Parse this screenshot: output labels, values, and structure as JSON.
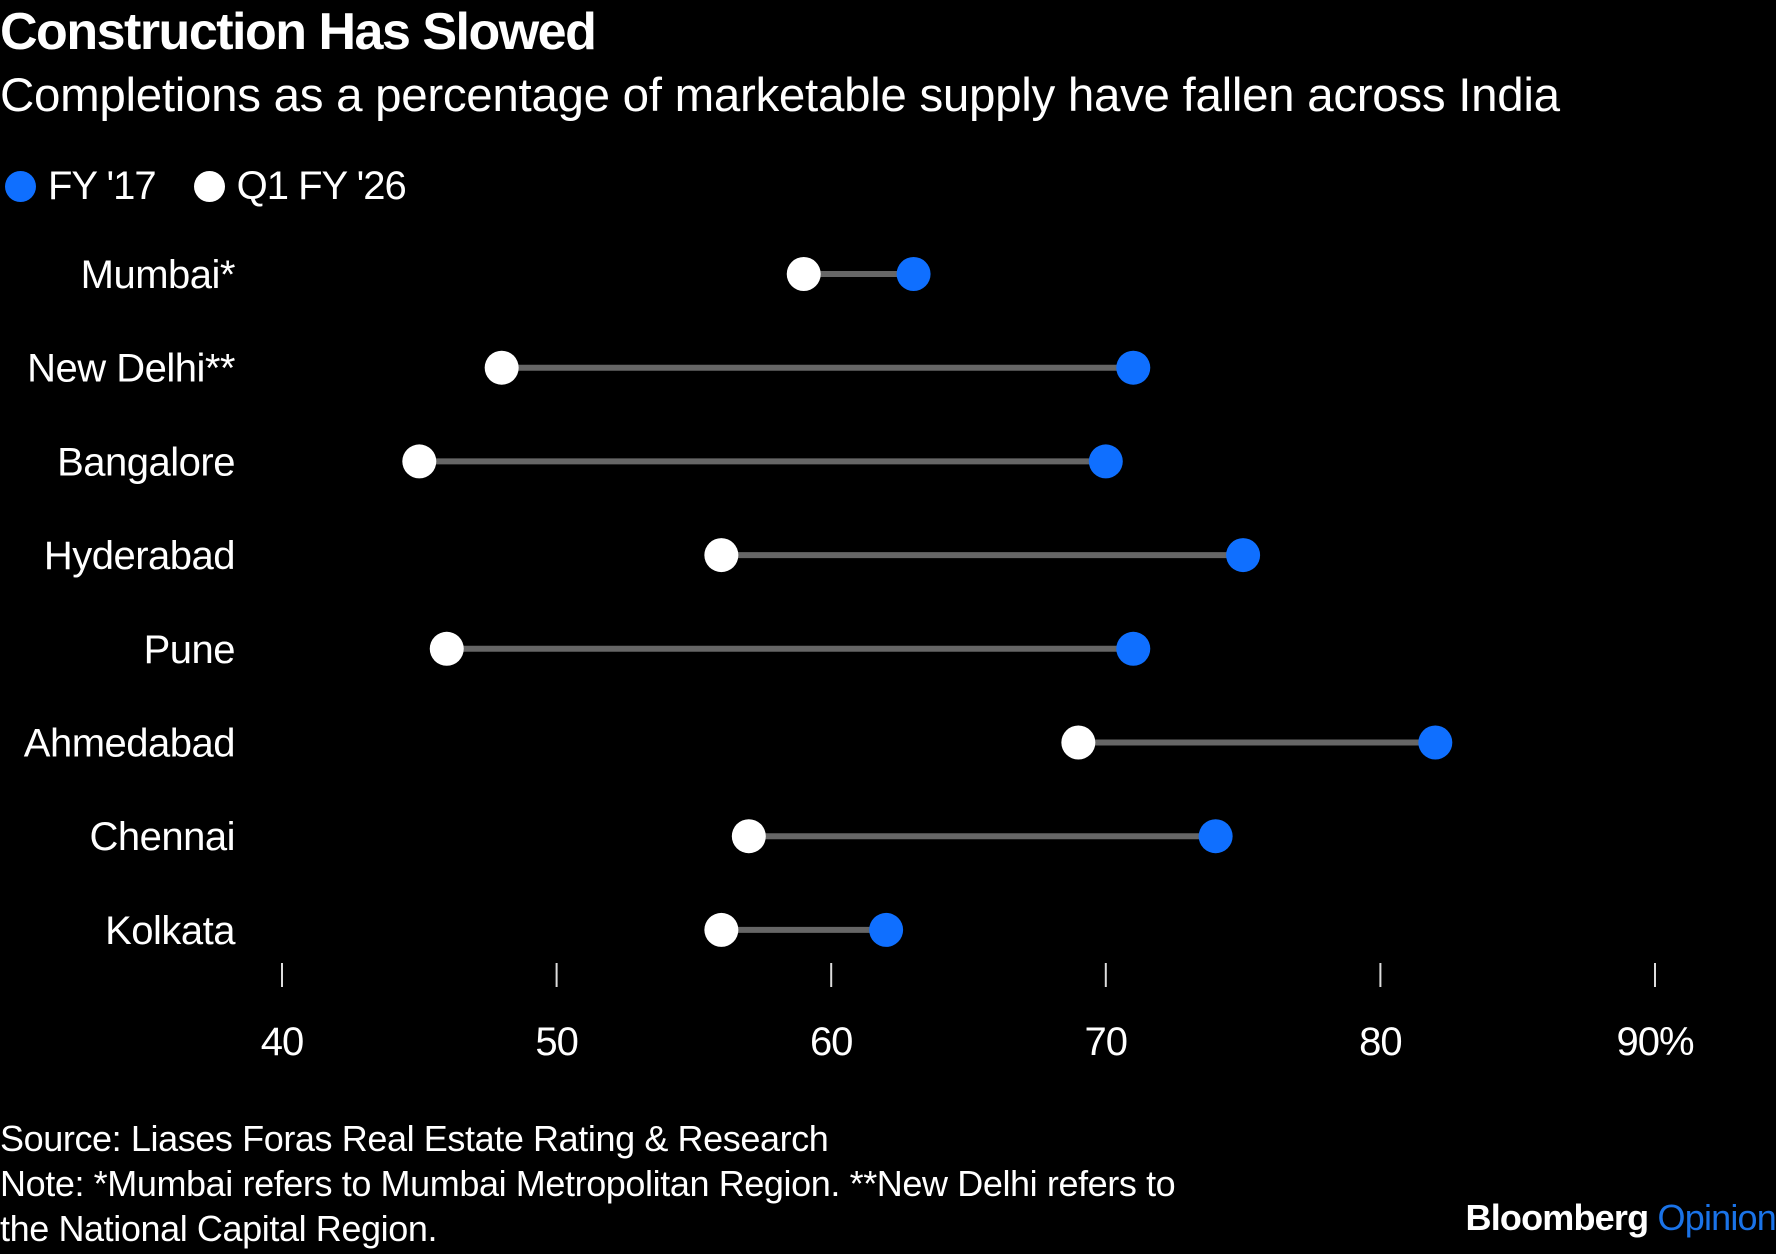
{
  "header": {
    "title": "Construction Has Slowed",
    "subtitle": "Completions as a percentage of marketable supply have fallen across India"
  },
  "legend": [
    {
      "label": "FY '17",
      "color": "#0f6fff"
    },
    {
      "label": "Q1 FY '26",
      "color": "#ffffff"
    }
  ],
  "footer": {
    "source": "Source: Liases Foras Real Estate Rating & Research",
    "note_line1": "Note: *Mumbai refers to Mumbai Metropolitan Region. **New Delhi refers to",
    "note_line2": "the National Capital Region."
  },
  "brand": {
    "name": "Bloomberg",
    "section": "Opinion"
  },
  "colors": {
    "fy17": "#0f6fff",
    "q1fy26": "#ffffff",
    "connector": "#666666",
    "background": "#000000"
  },
  "chart_data": {
    "type": "dumbbell",
    "title": "Construction Has Slowed",
    "subtitle": "Completions as a percentage of marketable supply have fallen across India",
    "xlabel": "",
    "ylabel": "",
    "xlim": [
      40,
      90
    ],
    "x_ticks": [
      40,
      50,
      60,
      70,
      80,
      90
    ],
    "x_tick_labels": [
      "40",
      "50",
      "60",
      "70",
      "80",
      "90%"
    ],
    "grid": false,
    "legend_position": "top-left",
    "categories": [
      "Mumbai*",
      "New Delhi**",
      "Bangalore",
      "Hyderabad",
      "Pune",
      "Ahmedabad",
      "Chennai",
      "Kolkata"
    ],
    "series": [
      {
        "name": "FY '17",
        "color": "#0f6fff",
        "values": [
          63,
          71,
          70,
          75,
          71,
          82,
          74,
          62
        ]
      },
      {
        "name": "Q1 FY '26",
        "color": "#ffffff",
        "values": [
          59,
          48,
          45,
          56,
          46,
          69,
          57,
          56
        ]
      }
    ]
  }
}
